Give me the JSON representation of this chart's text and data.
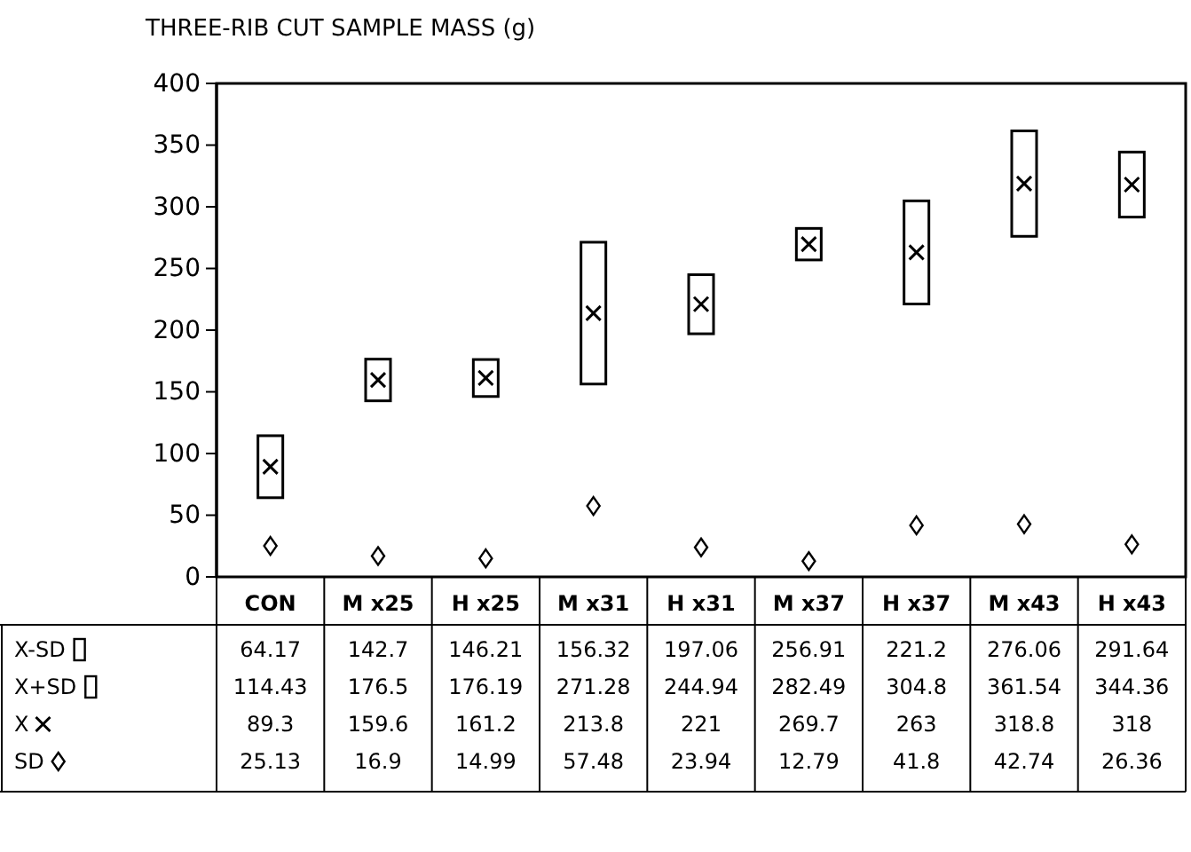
{
  "chart_data": {
    "type": "bar",
    "title": "THREE-RIB CUT SAMPLE MASS (g)",
    "categories": [
      "CON",
      "M x25",
      "H x25",
      "M x31",
      "H x31",
      "M x37",
      "H x37",
      "M x43",
      "H x43"
    ],
    "ylim": [
      0,
      400
    ],
    "yticks": [
      0,
      50,
      100,
      150,
      200,
      250,
      300,
      350,
      400
    ],
    "data_labels": true,
    "legend": "bottom left",
    "annotations": [
      "X-SD",
      "64.17",
      "142.7",
      "146.21",
      "156.32",
      "197.06",
      "256.91",
      "221.2",
      "276.06",
      "291.64"
    ],
    "series": [
      {
        "name": "X+SD",
        "color": "#000000",
        "base": [
          64.17,
          142.7,
          146.21,
          156.32,
          197.06,
          256.91,
          221.2,
          276.06,
          291.64
        ],
        "values": [
          50.26,
          33.8,
          29.98,
          114.96,
          47.88,
          25.58,
          83.6,
          85.48,
          52.72
        ],
        "value_labels": [
          "114.43",
          "176.5",
          "176.19",
          "271.28",
          "244.94",
          "282.49",
          "304.8",
          "361.54",
          "344.36"
        ]
      },
      {
        "name": "X",
        "type": "scatter",
        "marker": "cross",
        "color": "#000000",
        "values": [
          89.3,
          159.6,
          161.2,
          213.8,
          221,
          269.7,
          263,
          318.8,
          318
        ]
      },
      {
        "name": "SD",
        "type": "scatter",
        "marker": "diamond",
        "color": "#000000",
        "values": [
          25.13,
          16.9,
          14.99,
          57.48,
          23.94,
          12.79,
          41.8,
          42.74,
          26.36
        ]
      }
    ]
  }
}
